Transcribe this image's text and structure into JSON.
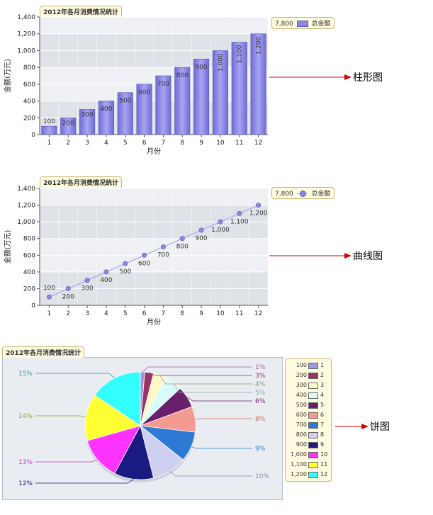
{
  "colors": {
    "bar_fill": "#8c88e6",
    "bar_stroke": "#5a56b8",
    "line": "#a9a7ee",
    "point": "#8c88e6",
    "plot_bg_dark": "#dfe3e8",
    "plot_bg_light": "#eef0f3",
    "arrow": "#d40000",
    "legend_bg": "#fffbe0",
    "legend_border": "#c8b870"
  },
  "charts": {
    "bar": {
      "title": "2012年各月消费情况统计",
      "legend_value": "7,800",
      "legend_label": "总金额",
      "annotation": "柱形图"
    },
    "line": {
      "title": "2012年各月消费情况统计",
      "legend_value": "7,800",
      "legend_label": "总金额",
      "annotation": "曲线图"
    },
    "pie": {
      "title": "2012年各月消费情况统计",
      "annotation": "饼图",
      "slice_colors": [
        "#9b98e6",
        "#993366",
        "#fff9c8",
        "#d7fafb",
        "#6a1f6a",
        "#f59a90",
        "#2e79d4",
        "#cfcff2",
        "#1a1a80",
        "#ff33ff",
        "#ffff33",
        "#33ffff"
      ],
      "label_colors": [
        "#a06a9c",
        "#993366",
        "#999966",
        "#88aaaa",
        "#6a1f6a",
        "#cc6655",
        "#2e79d4",
        "#8888aa",
        "#1a1a80",
        "#cc33cc",
        "#999933",
        "#339999"
      ]
    }
  },
  "chart_data": [
    {
      "type": "bar",
      "title": "2012年各月消费情况统计",
      "xlabel": "月份",
      "ylabel": "金额(万元)",
      "categories": [
        "1",
        "2",
        "3",
        "4",
        "5",
        "6",
        "7",
        "8",
        "9",
        "10",
        "11",
        "12"
      ],
      "series": [
        {
          "name": "总金额",
          "values": [
            100,
            200,
            300,
            400,
            500,
            600,
            700,
            800,
            900,
            1000,
            1100,
            1200
          ]
        }
      ],
      "data_labels": [
        "100",
        "200",
        "300",
        "400",
        "500",
        "600",
        "700",
        "800",
        "900",
        "1,000",
        "1,100",
        "1,200"
      ],
      "yticks": [
        "0",
        "200",
        "400",
        "600",
        "800",
        "1,000",
        "1,200",
        "1,400"
      ],
      "ylim": [
        0,
        1400
      ],
      "legend_total": "7,800",
      "legend": "top-right",
      "grid": true
    },
    {
      "type": "line",
      "title": "2012年各月消费情况统计",
      "xlabel": "月份",
      "ylabel": "金额(万元)",
      "categories": [
        "1",
        "2",
        "3",
        "4",
        "5",
        "6",
        "7",
        "8",
        "9",
        "10",
        "11",
        "12"
      ],
      "series": [
        {
          "name": "总金额",
          "values": [
            100,
            200,
            300,
            400,
            500,
            600,
            700,
            800,
            900,
            1000,
            1100,
            1200
          ]
        }
      ],
      "data_labels": [
        "100",
        "200",
        "300",
        "400",
        "500",
        "600",
        "700",
        "800",
        "900",
        "1,000",
        "1,100",
        "1,200"
      ],
      "yticks": [
        "0",
        "200",
        "400",
        "600",
        "800",
        "1,000",
        "1,200",
        "1,400"
      ],
      "ylim": [
        0,
        1400
      ],
      "legend_total": "7,800",
      "legend": "top-right",
      "grid": true
    },
    {
      "type": "pie",
      "title": "2012年各月消费情况统计",
      "categories": [
        "1",
        "2",
        "3",
        "4",
        "5",
        "6",
        "7",
        "8",
        "9",
        "10",
        "11",
        "12"
      ],
      "values": [
        100,
        200,
        300,
        400,
        500,
        600,
        700,
        800,
        900,
        1000,
        1100,
        1200
      ],
      "value_labels": [
        "100",
        "200",
        "300",
        "400",
        "500",
        "600",
        "700",
        "800",
        "900",
        "1,000",
        "1,100",
        "1,200"
      ],
      "percent_labels": [
        "1%",
        "3%",
        "4%",
        "5%",
        "6%",
        "8%",
        "9%",
        "10%",
        "12%",
        "13%",
        "14%",
        "15%"
      ],
      "legend": "right"
    }
  ]
}
